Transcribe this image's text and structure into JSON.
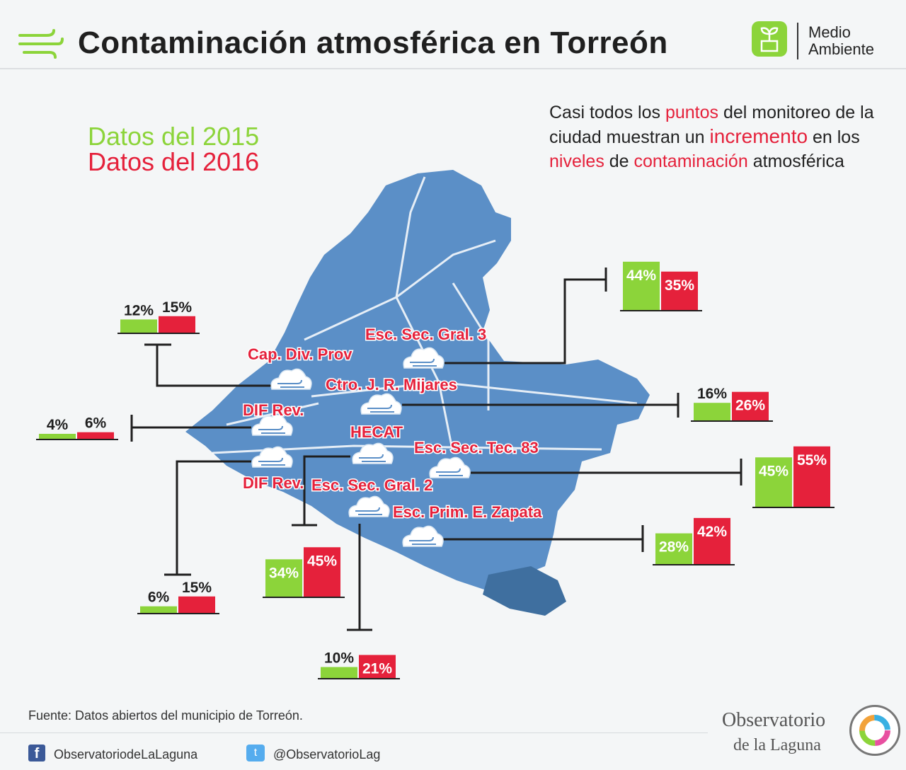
{
  "header": {
    "title": "Contaminación atmosférica en Torreón",
    "brand_line1": "Medio",
    "brand_line2": "Ambiente"
  },
  "legend": {
    "year_2015": "Datos del 2015",
    "year_2016": "Datos del 2016"
  },
  "note": {
    "p1": "Casi todos los ",
    "w_puntos": "puntos",
    "p2": " del monitoreo de la ciudad muestran un ",
    "w_incremento": "incremento",
    "p3": " en los ",
    "w_niveles": "niveles",
    "p4": " de ",
    "w_contaminacion": "contaminación",
    "p5": " atmosférica"
  },
  "footer": {
    "source": "Fuente: Datos abiertos del municipio de Torreón.",
    "facebook": "ObservatoriodeLaLaguna",
    "twitter": "@ObservatorioLag",
    "org_name": "Observatorio",
    "org_sub": "de la Laguna"
  },
  "colors": {
    "green": "#8cd43a",
    "red": "#e5213b",
    "map": "#5b8fc7",
    "map_dark": "#3f6f9f",
    "text": "#1f1f1f"
  },
  "chart_data": {
    "type": "bar",
    "title": "Contaminación atmosférica en Torreón",
    "series_names": [
      "Datos del 2015",
      "Datos del 2016"
    ],
    "unit": "%",
    "stations": [
      {
        "name": "Esc. Sec. Gral. 3",
        "v2015": 44,
        "v2016": 35,
        "label2015": "44%",
        "label2016": "35%"
      },
      {
        "name": "Cap. Div. Prov",
        "v2015": 12,
        "v2016": 15,
        "label2015": "12%",
        "label2016": "15%"
      },
      {
        "name": "Ctro. J. R. Mijares",
        "v2015": 16,
        "v2016": 26,
        "label2015": "16%",
        "label2016": "26%"
      },
      {
        "name": "DIF Rev.",
        "v2015": 4,
        "v2016": 6,
        "label2015": "4%",
        "label2016": "6%"
      },
      {
        "name": "Esc. Sec. Tec. 83",
        "v2015": 45,
        "v2016": 55,
        "label2015": "45%",
        "label2016": "55%"
      },
      {
        "name": "HECAT",
        "v2015": 34,
        "v2016": 45,
        "label2015": "34%",
        "label2016": "45%"
      },
      {
        "name": "DIF Rev.",
        "v2015": 6,
        "v2016": 15,
        "label2015": "6%",
        "label2016": "15%"
      },
      {
        "name": "Esc. Sec. Gral. 2",
        "v2015": 10,
        "v2016": 21,
        "label2015": "10%",
        "label2016": "21%"
      },
      {
        "name": "Esc. Prim. E. Zapata",
        "v2015": 28,
        "v2016": 42,
        "label2015": "28%",
        "label2016": "42%"
      }
    ]
  }
}
